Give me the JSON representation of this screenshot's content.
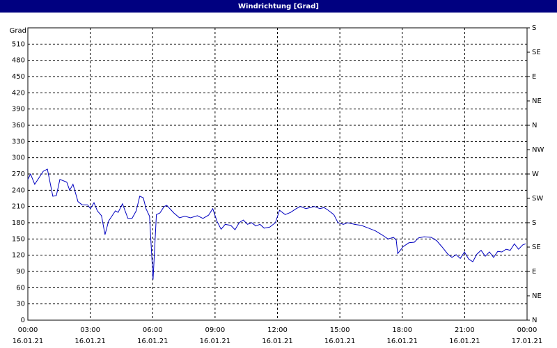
{
  "chart_data": {
    "type": "line",
    "title": "Windrichtung [Grad]",
    "y_label": "Grad",
    "color": "#0000c0",
    "grid": true,
    "xlim": [
      0,
      24
    ],
    "xticks": [
      {
        "value": 0,
        "label": "00:00"
      },
      {
        "value": 3,
        "label": "03:00"
      },
      {
        "value": 6,
        "label": "06:00"
      },
      {
        "value": 9,
        "label": "09:00"
      },
      {
        "value": 12,
        "label": "12:00"
      },
      {
        "value": 15,
        "label": "15:00"
      },
      {
        "value": 18,
        "label": "18:00"
      },
      {
        "value": 21,
        "label": "21:00"
      },
      {
        "value": 24,
        "label": "00:00"
      }
    ],
    "xtick_dates": [
      "16.01.21",
      "16.01.21",
      "16.01.21",
      "16.01.21",
      "16.01.21",
      "16.01.21",
      "16.01.21",
      "16.01.21",
      "17.01.21"
    ],
    "ylim": [
      0,
      540
    ],
    "yticks": [
      0,
      30,
      60,
      90,
      120,
      150,
      180,
      210,
      240,
      270,
      300,
      330,
      360,
      390,
      420,
      450,
      480,
      510
    ],
    "y2lim": [
      0,
      540
    ],
    "y2ticks": [
      {
        "value": 0,
        "label": "N"
      },
      {
        "value": 45,
        "label": "NE"
      },
      {
        "value": 90,
        "label": "E"
      },
      {
        "value": 135,
        "label": "SE"
      },
      {
        "value": 180,
        "label": "S"
      },
      {
        "value": 225,
        "label": "SW"
      },
      {
        "value": 270,
        "label": "W"
      },
      {
        "value": 315,
        "label": "NW"
      },
      {
        "value": 360,
        "label": "N"
      },
      {
        "value": 405,
        "label": "NE"
      },
      {
        "value": 450,
        "label": "E"
      },
      {
        "value": 495,
        "label": "SE"
      },
      {
        "value": 540,
        "label": "S"
      }
    ],
    "x": [
      0,
      0.13,
      0.33,
      0.74,
      0.94,
      1.2,
      1.37,
      1.54,
      1.87,
      2.01,
      2.17,
      2.41,
      2.61,
      2.87,
      3.01,
      3.18,
      3.34,
      3.54,
      3.71,
      3.88,
      4.21,
      4.34,
      4.55,
      4.81,
      5.01,
      5.21,
      5.38,
      5.55,
      5.68,
      5.85,
      6.02,
      6.18,
      6.35,
      6.55,
      6.68,
      7.02,
      7.29,
      7.55,
      7.82,
      8.15,
      8.42,
      8.69,
      8.89,
      9.09,
      9.29,
      9.49,
      9.76,
      9.96,
      10.16,
      10.36,
      10.56,
      10.76,
      10.96,
      11.16,
      11.36,
      11.63,
      11.9,
      12.1,
      12.37,
      12.63,
      12.9,
      13.1,
      13.37,
      13.57,
      13.77,
      14.04,
      14.24,
      14.44,
      14.71,
      14.91,
      15.17,
      15.37,
      15.71,
      16.04,
      16.38,
      16.71,
      17.05,
      17.31,
      17.58,
      17.71,
      17.78,
      18.05,
      18.32,
      18.58,
      18.78,
      19.05,
      19.39,
      19.65,
      19.92,
      20.19,
      20.39,
      20.59,
      20.79,
      20.99,
      21.19,
      21.39,
      21.59,
      21.79,
      21.99,
      22.19,
      22.39,
      22.59,
      22.79,
      22.99,
      23.19,
      23.39,
      23.59,
      23.79,
      23.93
    ],
    "values": [
      260,
      270,
      251,
      275,
      279,
      229,
      230,
      260,
      255,
      240,
      251,
      219,
      213,
      213,
      206,
      217,
      202,
      193,
      158,
      183,
      202,
      199,
      215,
      188,
      188,
      202,
      229,
      226,
      206,
      192,
      75,
      195,
      198,
      210,
      212,
      198,
      189,
      192,
      189,
      193,
      188,
      194,
      206,
      183,
      168,
      177,
      175,
      167,
      180,
      185,
      177,
      180,
      174,
      177,
      170,
      172,
      180,
      203,
      195,
      199,
      206,
      210,
      206,
      208,
      210,
      206,
      208,
      203,
      195,
      180,
      177,
      180,
      177,
      175,
      170,
      165,
      157,
      150,
      153,
      148,
      123,
      136,
      143,
      144,
      152,
      154,
      153,
      147,
      135,
      122,
      116,
      121,
      114,
      126,
      113,
      108,
      122,
      129,
      118,
      126,
      116,
      127,
      126,
      131,
      129,
      141,
      131,
      139,
      141
    ]
  }
}
